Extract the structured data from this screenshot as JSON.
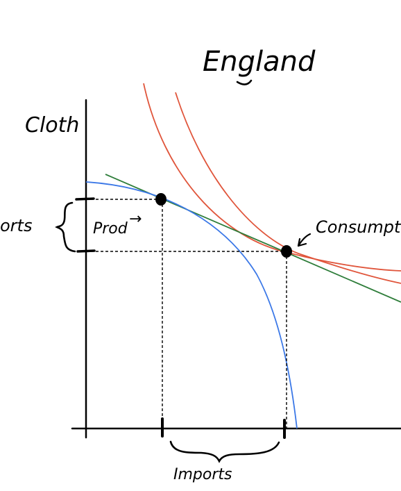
{
  "diagram": {
    "title": "England",
    "y_axis_label": "Cloth",
    "left_bracket_label": "orts",
    "production_label": "Prod",
    "production_arrow": "→",
    "consumption_label": "Consumption",
    "imports_label": "Imports",
    "colors": {
      "axes": "#000000",
      "ppf": "#3b78e7",
      "trade_line": "#2e7d3a",
      "indifference": "#e0553b",
      "guides": "#000000"
    }
  }
}
